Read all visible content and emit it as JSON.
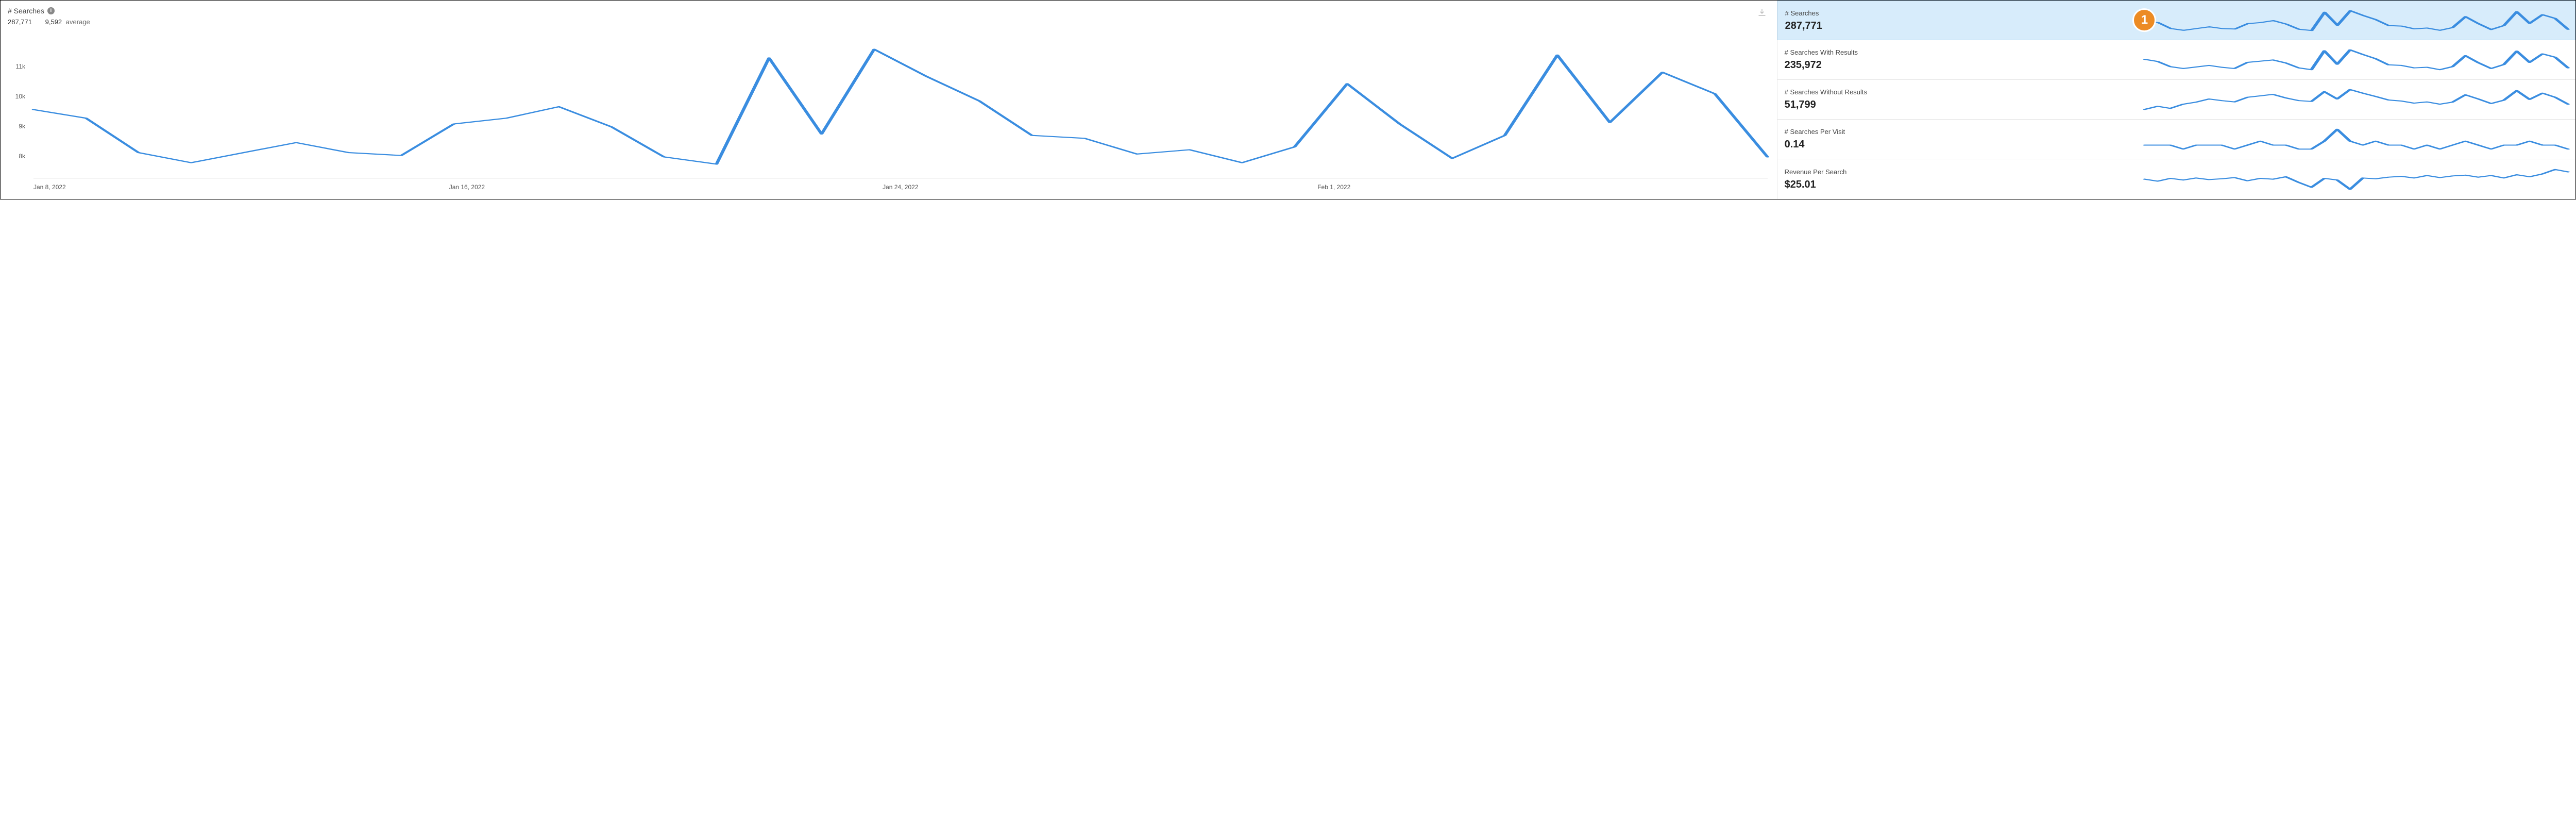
{
  "colors": {
    "line": "#3a8de0",
    "badge_bg": "#ec8b24",
    "selected_bg": "#d7ecfb",
    "axis_text": "#555555"
  },
  "main_chart": {
    "title": "# Searches",
    "total": "287,771",
    "average_value": "9,592",
    "average_label": "average",
    "y_ticks": [
      8000,
      9000,
      10000,
      11000
    ],
    "y_tick_labels": [
      "8k",
      "9k",
      "10k",
      "11k"
    ],
    "y_min": 7500,
    "y_max": 12300,
    "x_ticks": [
      {
        "pos": 0.0,
        "label": "Jan 8, 2022"
      },
      {
        "pos": 0.25,
        "label": "Jan 16, 2022"
      },
      {
        "pos": 0.5,
        "label": "Jan 24, 2022"
      },
      {
        "pos": 0.75,
        "label": "Feb 1, 2022"
      }
    ],
    "series": [
      9800,
      9500,
      8300,
      7950,
      8300,
      8650,
      8300,
      8200,
      9300,
      9500,
      9900,
      9200,
      8150,
      7900,
      11600,
      8950,
      11900,
      10950,
      10100,
      8900,
      8800,
      8250,
      8400,
      7950,
      8500,
      10700,
      9300,
      8100,
      8900,
      11700,
      9350,
      11100,
      10350,
      8150
    ]
  },
  "sidebar": {
    "badge": "1",
    "metrics": [
      {
        "label": "# Searches",
        "value": "287,771",
        "selected": true,
        "spark": [
          9800,
          9500,
          8300,
          7950,
          8300,
          8650,
          8300,
          8200,
          9300,
          9500,
          9900,
          9200,
          8150,
          7900,
          11600,
          8950,
          11900,
          10950,
          10100,
          8900,
          8800,
          8250,
          8400,
          7950,
          8500,
          10700,
          9300,
          8100,
          8900,
          11700,
          9350,
          11100,
          10350,
          8150
        ]
      },
      {
        "label": "# Searches With Results",
        "value": "235,972",
        "selected": false,
        "spark": [
          8200,
          7850,
          7000,
          6700,
          6950,
          7200,
          6900,
          6700,
          7700,
          7900,
          8100,
          7600,
          6800,
          6500,
          9600,
          7400,
          9750,
          9000,
          8300,
          7300,
          7200,
          6800,
          6900,
          6500,
          7000,
          8800,
          7650,
          6700,
          7350,
          9550,
          7700,
          9100,
          8550,
          6800
        ]
      },
      {
        "label": "# Searches Without Results",
        "value": "51,799",
        "selected": false,
        "spark": [
          1200,
          1350,
          1250,
          1450,
          1550,
          1700,
          1620,
          1560,
          1780,
          1850,
          1920,
          1750,
          1620,
          1580,
          2050,
          1700,
          2150,
          1980,
          1820,
          1650,
          1600,
          1500,
          1560,
          1450,
          1550,
          1900,
          1700,
          1480,
          1640,
          2100,
          1680,
          1980,
          1780,
          1450
        ]
      },
      {
        "label": "# Searches Per Visit",
        "value": "0.14",
        "selected": false,
        "spark": [
          0.14,
          0.14,
          0.14,
          0.13,
          0.14,
          0.14,
          0.14,
          0.13,
          0.14,
          0.15,
          0.14,
          0.14,
          0.13,
          0.13,
          0.15,
          0.18,
          0.15,
          0.14,
          0.15,
          0.14,
          0.14,
          0.13,
          0.14,
          0.13,
          0.14,
          0.15,
          0.14,
          0.13,
          0.14,
          0.14,
          0.15,
          0.14,
          0.14,
          0.13
        ]
      },
      {
        "label": "Revenue Per Search",
        "value": "$25.01",
        "selected": false,
        "spark": [
          25,
          24.5,
          25.2,
          24.8,
          25.3,
          24.9,
          25.1,
          25.4,
          24.6,
          25.2,
          25.0,
          25.6,
          24.2,
          23.0,
          25.2,
          24.8,
          22.5,
          25.3,
          25.1,
          25.5,
          25.7,
          25.3,
          25.9,
          25.4,
          25.8,
          26.0,
          25.5,
          25.9,
          25.3,
          26.1,
          25.6,
          26.3,
          27.4,
          26.8
        ]
      }
    ]
  }
}
